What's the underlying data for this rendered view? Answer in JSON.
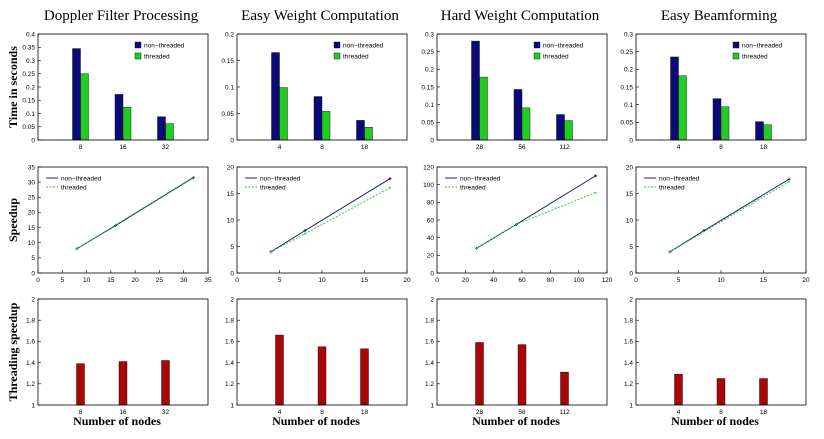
{
  "colors": {
    "non_threaded": "#0a0a78",
    "threaded": "#22cc22",
    "speedup_ratio": "#aa0808",
    "axis": "#000000"
  },
  "row_labels": [
    "Time in seconds",
    "Speedup",
    "Threading speedup"
  ],
  "xlabel": "Number of nodes",
  "legend": {
    "non_threaded": "non−threaded",
    "threaded": "threaded"
  },
  "chart_data": [
    {
      "panel": "Doppler Filter Processing",
      "title": "Doppler Filter Processing",
      "time": {
        "type": "bar",
        "categories": [
          "8",
          "16",
          "32"
        ],
        "ylim": [
          0,
          0.4
        ],
        "yticks": [
          "0",
          "0.05",
          "0.1",
          "0.15",
          "0.2",
          "0.25",
          "0.3",
          "0.35",
          "0.4"
        ],
        "series": [
          {
            "name": "non−threaded",
            "values": [
              0.345,
              0.172,
              0.088
            ]
          },
          {
            "name": "threaded",
            "values": [
              0.25,
              0.124,
              0.062
            ]
          }
        ]
      },
      "speedup": {
        "type": "line",
        "xlim": [
          0,
          35
        ],
        "ylim": [
          0,
          35
        ],
        "xticks": [
          "0",
          "5",
          "10",
          "15",
          "20",
          "25",
          "30",
          "35"
        ],
        "yticks": [
          "0",
          "5",
          "10",
          "15",
          "20",
          "25",
          "30",
          "35"
        ],
        "series": [
          {
            "name": "non−threaded",
            "x": [
              8,
              16,
              32
            ],
            "y": [
              8,
              15.7,
              31.5
            ]
          },
          {
            "name": "threaded",
            "x": [
              8,
              16,
              32
            ],
            "y": [
              8,
              15.9,
              31.7
            ]
          }
        ]
      },
      "threading": {
        "type": "bar",
        "categories": [
          "8",
          "16",
          "32"
        ],
        "ylim": [
          1,
          2
        ],
        "yticks": [
          "1",
          "1.2",
          "1.4",
          "1.6",
          "1.8",
          "2"
        ],
        "values": [
          1.39,
          1.41,
          1.42
        ]
      }
    },
    {
      "panel": "Easy Weight Computation",
      "title": "Easy Weight Computation",
      "time": {
        "type": "bar",
        "categories": [
          "4",
          "8",
          "18"
        ],
        "ylim": [
          0,
          0.2
        ],
        "yticks": [
          "0",
          "0.05",
          "0.1",
          "0.15",
          "0.2"
        ],
        "series": [
          {
            "name": "non−threaded",
            "values": [
              0.165,
              0.082,
              0.037
            ]
          },
          {
            "name": "threaded",
            "values": [
              0.099,
              0.054,
              0.024
            ]
          }
        ]
      },
      "speedup": {
        "type": "line",
        "xlim": [
          0,
          20
        ],
        "ylim": [
          0,
          20
        ],
        "xticks": [
          "0",
          "5",
          "10",
          "15",
          "20"
        ],
        "yticks": [
          "0",
          "5",
          "10",
          "15",
          "20"
        ],
        "series": [
          {
            "name": "non−threaded",
            "x": [
              4,
              8,
              18
            ],
            "y": [
              4,
              8,
              17.8
            ]
          },
          {
            "name": "threaded",
            "x": [
              4,
              8,
              18
            ],
            "y": [
              4,
              7.4,
              16.1
            ]
          }
        ]
      },
      "threading": {
        "type": "bar",
        "categories": [
          "4",
          "8",
          "18"
        ],
        "ylim": [
          1,
          2
        ],
        "yticks": [
          "1",
          "1.2",
          "1.4",
          "1.6",
          "1.8",
          "2"
        ],
        "values": [
          1.66,
          1.55,
          1.53
        ]
      }
    },
    {
      "panel": "Hard Weight Computation",
      "title": "Hard Weight Computation",
      "time": {
        "type": "bar",
        "categories": [
          "28",
          "56",
          "112"
        ],
        "ylim": [
          0,
          0.3
        ],
        "yticks": [
          "0",
          "0.05",
          "0.1",
          "0.15",
          "0.2",
          "0.25",
          "0.3"
        ],
        "series": [
          {
            "name": "non−threaded",
            "values": [
              0.28,
              0.143,
              0.072
            ]
          },
          {
            "name": "threaded",
            "values": [
              0.178,
              0.091,
              0.055
            ]
          }
        ]
      },
      "speedup": {
        "type": "line",
        "xlim": [
          0,
          120
        ],
        "ylim": [
          0,
          120
        ],
        "xticks": [
          "0",
          "20",
          "40",
          "60",
          "80",
          "100",
          "120"
        ],
        "yticks": [
          "0",
          "20",
          "40",
          "60",
          "80",
          "100",
          "120"
        ],
        "series": [
          {
            "name": "non−threaded",
            "x": [
              28,
              56,
              112
            ],
            "y": [
              28,
              55,
              110
            ]
          },
          {
            "name": "threaded",
            "x": [
              28,
              56,
              112
            ],
            "y": [
              28,
              55,
              91
            ]
          }
        ]
      },
      "threading": {
        "type": "bar",
        "categories": [
          "28",
          "56",
          "112"
        ],
        "ylim": [
          1,
          2
        ],
        "yticks": [
          "1",
          "1.2",
          "1.4",
          "1.6",
          "1.8",
          "2"
        ],
        "values": [
          1.59,
          1.57,
          1.31
        ]
      }
    },
    {
      "panel": "Easy Beamforming",
      "title": "Easy Beamforming",
      "time": {
        "type": "bar",
        "categories": [
          "4",
          "8",
          "18"
        ],
        "ylim": [
          0,
          0.3
        ],
        "yticks": [
          "0",
          "0.05",
          "0.1",
          "0.15",
          "0.2",
          "0.25",
          "0.3"
        ],
        "series": [
          {
            "name": "non−threaded",
            "values": [
              0.235,
              0.117,
              0.052
            ]
          },
          {
            "name": "threaded",
            "values": [
              0.182,
              0.094,
              0.043
            ]
          }
        ]
      },
      "speedup": {
        "type": "line",
        "xlim": [
          0,
          20
        ],
        "ylim": [
          0,
          20
        ],
        "xticks": [
          "0",
          "5",
          "10",
          "15",
          "20"
        ],
        "yticks": [
          "0",
          "5",
          "10",
          "15",
          "20"
        ],
        "series": [
          {
            "name": "non−threaded",
            "x": [
              4,
              8,
              18
            ],
            "y": [
              4,
              8,
              17.7
            ]
          },
          {
            "name": "threaded",
            "x": [
              4,
              8,
              18
            ],
            "y": [
              4,
              7.8,
              17.2
            ]
          }
        ]
      },
      "threading": {
        "type": "bar",
        "categories": [
          "4",
          "8",
          "18"
        ],
        "ylim": [
          1,
          2
        ],
        "yticks": [
          "1",
          "1.2",
          "1.4",
          "1.6",
          "1.8",
          "2"
        ],
        "values": [
          1.29,
          1.25,
          1.25
        ]
      }
    }
  ]
}
